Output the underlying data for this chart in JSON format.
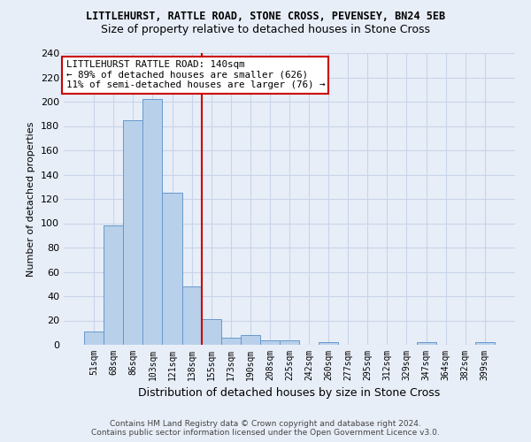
{
  "title": "LITTLEHURST, RATTLE ROAD, STONE CROSS, PEVENSEY, BN24 5EB",
  "subtitle": "Size of property relative to detached houses in Stone Cross",
  "xlabel": "Distribution of detached houses by size in Stone Cross",
  "ylabel": "Number of detached properties",
  "bar_color": "#b8d0ea",
  "bar_edge_color": "#6699cc",
  "categories": [
    "51sqm",
    "68sqm",
    "86sqm",
    "103sqm",
    "121sqm",
    "138sqm",
    "155sqm",
    "173sqm",
    "190sqm",
    "208sqm",
    "225sqm",
    "242sqm",
    "260sqm",
    "277sqm",
    "295sqm",
    "312sqm",
    "329sqm",
    "347sqm",
    "364sqm",
    "382sqm",
    "399sqm"
  ],
  "values": [
    11,
    98,
    185,
    202,
    125,
    48,
    21,
    6,
    8,
    4,
    4,
    0,
    2,
    0,
    0,
    0,
    0,
    2,
    0,
    0,
    2
  ],
  "vline_x": 5.5,
  "vline_color": "#cc0000",
  "annotation_text": "LITTLEHURST RATTLE ROAD: 140sqm\n← 89% of detached houses are smaller (626)\n11% of semi-detached houses are larger (76) →",
  "annotation_box_color": "white",
  "annotation_box_edge": "#cc0000",
  "ylim": [
    0,
    240
  ],
  "yticks": [
    0,
    20,
    40,
    60,
    80,
    100,
    120,
    140,
    160,
    180,
    200,
    220,
    240
  ],
  "grid_color": "#c8d4e8",
  "bg_color": "#e8eef8",
  "footnote1": "Contains HM Land Registry data © Crown copyright and database right 2024.",
  "footnote2": "Contains public sector information licensed under the Open Government Licence v3.0."
}
